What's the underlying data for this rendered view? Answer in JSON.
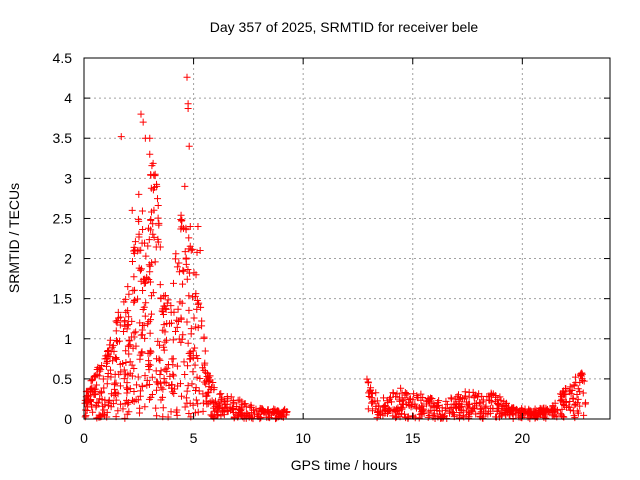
{
  "chart_data": {
    "type": "scatter",
    "title": "Day 357 of 2025, SRMTID for receiver bele",
    "xlabel": "GPS time / hours",
    "ylabel": "SRMTID / TECUs",
    "xlim": [
      0,
      24
    ],
    "ylim": [
      0,
      4.5
    ],
    "xticks": [
      0,
      5,
      10,
      15,
      20
    ],
    "yticks": [
      0,
      0.5,
      1,
      1.5,
      2,
      2.5,
      3,
      3.5,
      4,
      4.5
    ],
    "grid": true,
    "marker": "+",
    "color": "#ff0000",
    "series": [
      {
        "name": "SRMTID",
        "segments": [
          {
            "x_start": 0.0,
            "x_end": 1.0,
            "env": [
              [
                0,
                0.3
              ],
              [
                0.5,
                0.6
              ],
              [
                1.0,
                0.8
              ]
            ],
            "n": 80
          },
          {
            "x_start": 1.0,
            "x_end": 2.0,
            "env": [
              [
                1.0,
                0.8
              ],
              [
                1.5,
                1.3
              ],
              [
                2.0,
                1.7
              ]
            ],
            "n": 90
          },
          {
            "x_start": 2.0,
            "x_end": 3.0,
            "env": [
              [
                2.0,
                1.7
              ],
              [
                2.5,
                2.6
              ],
              [
                3.0,
                2.9
              ]
            ],
            "n": 110
          },
          {
            "x_start": 3.0,
            "x_end": 3.5,
            "env": [
              [
                3.0,
                3.1
              ],
              [
                3.2,
                3.6
              ],
              [
                3.5,
                2.2
              ]
            ],
            "n": 60
          },
          {
            "x_start": 3.5,
            "x_end": 4.3,
            "env": [
              [
                3.5,
                1.6
              ],
              [
                4.0,
                1.5
              ],
              [
                4.3,
                2.5
              ]
            ],
            "n": 70
          },
          {
            "x_start": 4.3,
            "x_end": 5.3,
            "env": [
              [
                4.4,
                2.6
              ],
              [
                4.8,
                2.3
              ],
              [
                5.3,
                2.0
              ]
            ],
            "n": 90
          },
          {
            "x_start": 5.3,
            "x_end": 6.0,
            "env": [
              [
                5.3,
                1.6
              ],
              [
                5.6,
                0.7
              ],
              [
                6.0,
                0.35
              ]
            ],
            "n": 50
          },
          {
            "x_start": 6.0,
            "x_end": 9.3,
            "env": [
              [
                6.0,
                0.35
              ],
              [
                7.0,
                0.25
              ],
              [
                8.0,
                0.15
              ],
              [
                9.3,
                0.12
              ]
            ],
            "n": 150
          },
          {
            "x_start": 12.9,
            "x_end": 16.5,
            "env": [
              [
                12.9,
                0.6
              ],
              [
                13.5,
                0.25
              ],
              [
                14.5,
                0.4
              ],
              [
                15.5,
                0.3
              ],
              [
                16.5,
                0.2
              ]
            ],
            "n": 170
          },
          {
            "x_start": 16.5,
            "x_end": 19.5,
            "env": [
              [
                16.5,
                0.25
              ],
              [
                17.5,
                0.35
              ],
              [
                18.5,
                0.35
              ],
              [
                19.5,
                0.2
              ]
            ],
            "n": 150
          },
          {
            "x_start": 19.5,
            "x_end": 21.5,
            "env": [
              [
                19.5,
                0.15
              ],
              [
                20.5,
                0.12
              ],
              [
                21.5,
                0.2
              ]
            ],
            "n": 110
          },
          {
            "x_start": 21.5,
            "x_end": 22.9,
            "env": [
              [
                21.5,
                0.25
              ],
              [
                22.0,
                0.4
              ],
              [
                22.5,
                0.55
              ],
              [
                22.9,
                0.6
              ]
            ],
            "n": 70
          }
        ],
        "outliers": [
          [
            1.7,
            3.52
          ],
          [
            2.6,
            3.8
          ],
          [
            2.7,
            3.7
          ],
          [
            2.8,
            3.5
          ],
          [
            3.0,
            3.5
          ],
          [
            3.0,
            3.3
          ],
          [
            4.7,
            4.26
          ],
          [
            4.75,
            3.93
          ],
          [
            4.75,
            3.87
          ],
          [
            4.8,
            3.4
          ],
          [
            4.6,
            2.9
          ],
          [
            4.85,
            2.4
          ],
          [
            5.2,
            2.4
          ],
          [
            5.3,
            2.1
          ],
          [
            2.2,
            2.6
          ],
          [
            2.5,
            2.8
          ]
        ]
      }
    ]
  }
}
